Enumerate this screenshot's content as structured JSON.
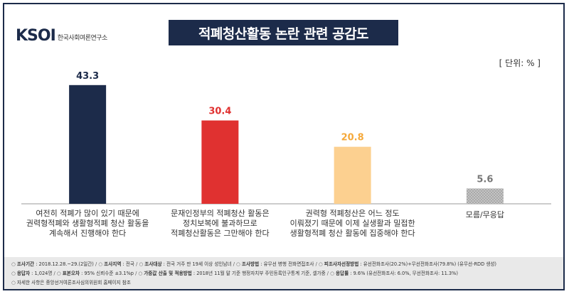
{
  "logo": {
    "mark": "KSOI",
    "text": "한국사회여론연구소"
  },
  "title": "적폐청산활동 논란 관련 공감도",
  "unit": "[ 단위: % ]",
  "chart_data": {
    "type": "bar",
    "title": "적폐청산활동 논란 관련 공감도",
    "categories": [
      [
        "여전히 적폐가 많이 있기 때문에",
        "권력형적폐와 생활형적폐 청산 활동을",
        "계속해서 진행해야 한다"
      ],
      [
        "문재인정부의 적폐청산 활동은",
        "정치보복에 불과하므로",
        "적폐청산활동은 그만해야 한다"
      ],
      [
        "권력형 적폐청산은 어느 정도",
        "이뤄졌기 때문에 이제 실생활과 밀접한",
        "생활형적폐 청산 활동에 집중해야 한다"
      ],
      [
        "모름/무응답"
      ]
    ],
    "values": [
      43.3,
      30.4,
      20.8,
      5.6
    ],
    "value_labels": [
      "43.3",
      "30.4",
      "20.8",
      "5.6"
    ],
    "bar_colors": [
      "#1c2b4a",
      "#e03130",
      "#fcd090",
      "#bdbdbd"
    ],
    "label_colors": [
      "#1c2b4a",
      "#e03130",
      "#f5a93b",
      "#777777"
    ],
    "ylim": [
      0,
      50
    ],
    "grid": false
  },
  "footer": {
    "rows": [
      [
        {
          "k": "조사기간",
          "v": "2018.12.28.~29.(2일간)"
        },
        {
          "k": "조사지역",
          "v": "전국"
        },
        {
          "k": "조사대상",
          "v": "전국 거주 만 19세 이상 성인남녀"
        },
        {
          "k": "조사방법",
          "v": "유무선 병행 전화면접조사"
        },
        {
          "k": "피조사자선정방법",
          "v": "유선전화조사(20.2%)+무선전화조사(79.8%) (유무선-RDD 생성)"
        }
      ],
      [
        {
          "k": "응답자",
          "v": "1,024명"
        },
        {
          "k": "표본오차",
          "v": "95% 신뢰수준 ±3.1%p"
        },
        {
          "k": "가중값 산출 및 적용방법",
          "v": "2018년 11월 말 기준 행정자치부 주민등록인구통계 기준, 셀가중"
        },
        {
          "k": "응답률",
          "v": "9.6% (유선전화조사: 6.0%, 무선전화조사: 11.3%)"
        }
      ]
    ],
    "note": "자세한 사항은 중앙선거여론조사심의위원회 홈페이지 참조"
  }
}
